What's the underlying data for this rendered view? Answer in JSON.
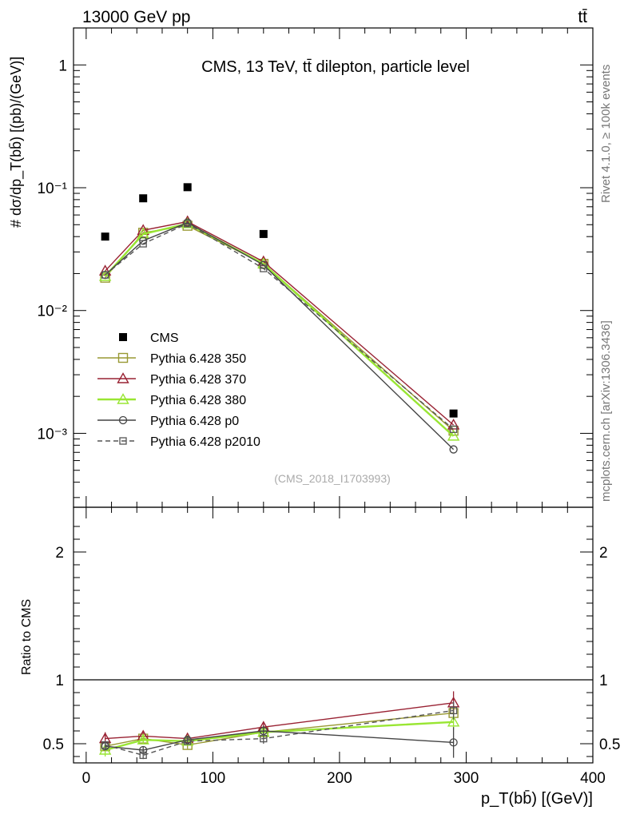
{
  "header": {
    "left": "13000 GeV pp",
    "right": "tt̄"
  },
  "side_labels": {
    "rivet": "Rivet 4.1.0, ≥ 100k events",
    "mcplots": "mcplots.cern.ch [arXiv:1306.3436]"
  },
  "chart_data": [
    {
      "type": "line",
      "panel": "main",
      "title": "CMS, 13 TeV, tt̄ dilepton, particle level",
      "watermark": "(CMS_2018_I1703993)",
      "ylabel": "# dσ/dp_T(bb̄) [(pb)/(GeV)]",
      "yscale": "log",
      "ylim": [
        0.00025,
        2
      ],
      "xlim": [
        -10,
        400
      ],
      "y_ticks": [
        {
          "value": 1,
          "label": "1"
        },
        {
          "value": 0.1,
          "label": "10⁻¹"
        },
        {
          "value": 0.01,
          "label": "10⁻²"
        },
        {
          "value": 0.001,
          "label": "10⁻³"
        }
      ],
      "x": [
        15,
        45,
        80,
        140,
        290
      ],
      "series": [
        {
          "name": "CMS",
          "color": "#000000",
          "marker": "filled-square",
          "line": "none",
          "values": [
            0.04,
            0.082,
            0.101,
            0.042,
            0.00145
          ]
        },
        {
          "name": "Pythia 6.428 350",
          "color": "#999933",
          "marker": "open-square",
          "line": "solid",
          "values": [
            0.0185,
            0.043,
            0.049,
            0.024,
            0.00105
          ]
        },
        {
          "name": "Pythia 6.428 370",
          "color": "#992233",
          "marker": "open-triangle",
          "line": "solid",
          "values": [
            0.021,
            0.045,
            0.053,
            0.025,
            0.00117
          ]
        },
        {
          "name": "Pythia 6.428 380",
          "color": "#99e633",
          "marker": "open-triangle",
          "line": "solid-thick",
          "values": [
            0.019,
            0.042,
            0.051,
            0.024,
            0.00095
          ]
        },
        {
          "name": "Pythia 6.428 p0",
          "color": "#444444",
          "marker": "open-circle",
          "line": "solid",
          "values": [
            0.0195,
            0.037,
            0.052,
            0.0235,
            0.00074
          ]
        },
        {
          "name": "Pythia 6.428 p2010",
          "color": "#555555",
          "marker": "open-square-small",
          "line": "dashed",
          "values": [
            0.0195,
            0.035,
            0.051,
            0.022,
            0.00108
          ]
        }
      ]
    },
    {
      "type": "line",
      "panel": "ratio",
      "ylabel": "Ratio to CMS",
      "xlabel": "p_T(bb̄) [(GeV)]",
      "ylim": [
        0.35,
        2.35
      ],
      "xlim": [
        -10,
        400
      ],
      "y_ticks": [
        {
          "value": 0.5,
          "label": "0.5"
        },
        {
          "value": 1,
          "label": "1"
        },
        {
          "value": 2,
          "label": "2"
        }
      ],
      "x_ticks": [
        {
          "value": 0,
          "label": "0"
        },
        {
          "value": 100,
          "label": "100"
        },
        {
          "value": 200,
          "label": "200"
        },
        {
          "value": 300,
          "label": "300"
        },
        {
          "value": 400,
          "label": "400"
        }
      ],
      "reference_line": 1,
      "x": [
        15,
        45,
        80,
        140,
        290
      ],
      "series": [
        {
          "name": "Pythia 6.428 350",
          "color": "#999933",
          "values": [
            0.48,
            0.54,
            0.49,
            0.59,
            0.74
          ],
          "err": [
            0.03,
            0.03,
            0.03,
            0.03,
            0.06
          ]
        },
        {
          "name": "Pythia 6.428 370",
          "color": "#992233",
          "values": [
            0.54,
            0.56,
            0.54,
            0.63,
            0.82
          ],
          "err": [
            0.05,
            0.03,
            0.02,
            0.03,
            0.09
          ]
        },
        {
          "name": "Pythia 6.428 380",
          "color": "#99e633",
          "values": [
            0.45,
            0.53,
            0.52,
            0.59,
            0.67
          ],
          "err": [
            0.05,
            0.03,
            0.02,
            0.03,
            0.06
          ]
        },
        {
          "name": "Pythia 6.428 p0",
          "color": "#444444",
          "values": [
            0.48,
            0.45,
            0.53,
            0.6,
            0.51
          ],
          "err": [
            0.03,
            0.03,
            0.03,
            0.04,
            0.12
          ]
        },
        {
          "name": "Pythia 6.428 p2010",
          "color": "#555555",
          "values": [
            0.49,
            0.41,
            0.52,
            0.54,
            0.76
          ],
          "err": [
            0.03,
            0.03,
            0.03,
            0.04,
            0.07
          ]
        }
      ]
    }
  ]
}
